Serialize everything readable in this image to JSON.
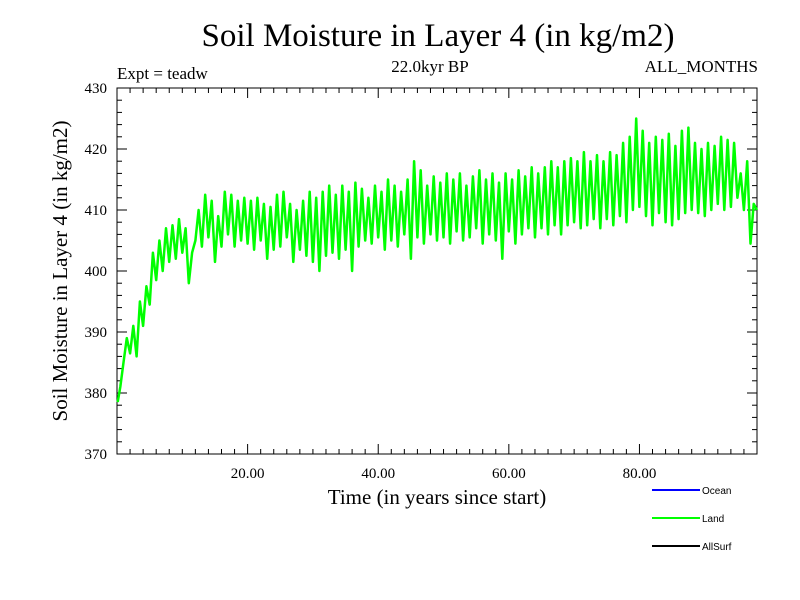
{
  "chart_data": {
    "type": "line",
    "title": "Soil Moisture in Layer 4 (in kg/m2)",
    "experiment": "Expt = teadw",
    "period": "22.0kyr BP",
    "months": "ALL_MONTHS",
    "xlabel": "Time (in years since start)",
    "ylabel": "Soil Moisture in Layer 4 (in kg/m2)",
    "xlim": [
      0,
      98
    ],
    "ylim": [
      370,
      430
    ],
    "xticks": [
      20,
      40,
      60,
      80
    ],
    "xtick_labels": [
      "20.00",
      "40.00",
      "60.00",
      "80.00"
    ],
    "yticks": [
      370,
      380,
      390,
      400,
      410,
      420,
      430
    ],
    "ytick_labels": [
      "370",
      "380",
      "390",
      "400",
      "410",
      "420",
      "430"
    ],
    "grid": false,
    "legend_position": "bottom-right",
    "series": [
      {
        "name": "Ocean",
        "color": "#0000ff",
        "points": []
      },
      {
        "name": "Land",
        "color": "#00ff00",
        "points": [
          [
            0.1,
            378.5
          ],
          [
            0.5,
            381
          ],
          [
            1,
            385
          ],
          [
            1.5,
            389
          ],
          [
            2,
            386.5
          ],
          [
            2.5,
            391
          ],
          [
            3,
            386
          ],
          [
            3.5,
            395
          ],
          [
            4,
            391
          ],
          [
            4.5,
            397.5
          ],
          [
            5,
            394.5
          ],
          [
            5.5,
            403
          ],
          [
            6,
            398.5
          ],
          [
            6.5,
            405
          ],
          [
            7,
            400
          ],
          [
            7.5,
            407
          ],
          [
            8,
            401.5
          ],
          [
            8.5,
            407.5
          ],
          [
            9,
            402
          ],
          [
            9.5,
            408.5
          ],
          [
            10,
            403
          ],
          [
            10.5,
            407
          ],
          [
            11,
            398
          ],
          [
            11.5,
            403
          ],
          [
            12,
            405
          ],
          [
            12.5,
            410
          ],
          [
            13,
            404
          ],
          [
            13.5,
            412.5
          ],
          [
            14,
            405.5
          ],
          [
            14.5,
            411.5
          ],
          [
            15,
            401.5
          ],
          [
            15.5,
            409
          ],
          [
            16,
            404
          ],
          [
            16.5,
            413
          ],
          [
            17,
            406
          ],
          [
            17.5,
            412.5
          ],
          [
            18,
            404
          ],
          [
            18.5,
            411.5
          ],
          [
            19,
            405
          ],
          [
            19.5,
            412
          ],
          [
            20,
            404.5
          ],
          [
            20.5,
            411.5
          ],
          [
            21,
            403.5
          ],
          [
            21.5,
            412
          ],
          [
            22,
            405
          ],
          [
            22.5,
            411
          ],
          [
            23,
            402
          ],
          [
            23.5,
            410.5
          ],
          [
            24,
            403.5
          ],
          [
            24.5,
            412.5
          ],
          [
            25,
            404
          ],
          [
            25.5,
            413
          ],
          [
            26,
            405.5
          ],
          [
            26.5,
            411
          ],
          [
            27,
            401.5
          ],
          [
            27.5,
            410
          ],
          [
            28,
            403.5
          ],
          [
            28.5,
            411.5
          ],
          [
            29,
            402.5
          ],
          [
            29.5,
            413
          ],
          [
            30,
            401.5
          ],
          [
            30.5,
            412
          ],
          [
            31,
            400
          ],
          [
            31.5,
            413
          ],
          [
            32,
            402.5
          ],
          [
            32.5,
            414
          ],
          [
            33,
            403
          ],
          [
            33.5,
            412.5
          ],
          [
            34,
            402
          ],
          [
            34.5,
            414
          ],
          [
            35,
            403.5
          ],
          [
            35.5,
            413
          ],
          [
            36,
            400
          ],
          [
            36.5,
            414.5
          ],
          [
            37,
            404
          ],
          [
            37.5,
            413.5
          ],
          [
            38,
            405
          ],
          [
            38.5,
            412
          ],
          [
            39,
            404.5
          ],
          [
            39.5,
            414
          ],
          [
            40,
            405.5
          ],
          [
            40.5,
            413
          ],
          [
            41,
            403.5
          ],
          [
            41.5,
            415
          ],
          [
            42,
            405
          ],
          [
            42.5,
            414
          ],
          [
            43,
            404
          ],
          [
            43.5,
            413
          ],
          [
            44,
            406
          ],
          [
            44.5,
            415
          ],
          [
            45,
            402
          ],
          [
            45.5,
            418
          ],
          [
            46,
            405.5
          ],
          [
            46.5,
            416.5
          ],
          [
            47,
            404.5
          ],
          [
            47.5,
            414
          ],
          [
            48,
            406
          ],
          [
            48.5,
            415.5
          ],
          [
            49,
            405
          ],
          [
            49.5,
            414.5
          ],
          [
            50,
            405.5
          ],
          [
            50.5,
            416
          ],
          [
            51,
            404.5
          ],
          [
            51.5,
            415
          ],
          [
            52,
            406.5
          ],
          [
            52.5,
            416
          ],
          [
            53,
            405
          ],
          [
            53.5,
            414
          ],
          [
            54,
            405.5
          ],
          [
            54.5,
            415.5
          ],
          [
            55,
            407
          ],
          [
            55.5,
            416.5
          ],
          [
            56,
            404.5
          ],
          [
            56.5,
            415
          ],
          [
            57,
            406
          ],
          [
            57.5,
            416
          ],
          [
            58,
            405
          ],
          [
            58.5,
            414.5
          ],
          [
            59,
            402
          ],
          [
            59.5,
            416
          ],
          [
            60,
            406.5
          ],
          [
            60.5,
            415
          ],
          [
            61,
            404.5
          ],
          [
            61.5,
            416.5
          ],
          [
            62,
            406
          ],
          [
            62.5,
            415.5
          ],
          [
            63,
            407
          ],
          [
            63.5,
            417
          ],
          [
            64,
            405.5
          ],
          [
            64.5,
            416
          ],
          [
            65,
            407
          ],
          [
            65.5,
            417
          ],
          [
            66,
            406
          ],
          [
            66.5,
            418
          ],
          [
            67,
            407.5
          ],
          [
            67.5,
            417
          ],
          [
            68,
            406
          ],
          [
            68.5,
            418
          ],
          [
            69,
            407.5
          ],
          [
            69.5,
            418.5
          ],
          [
            70,
            408
          ],
          [
            70.5,
            418
          ],
          [
            71,
            407
          ],
          [
            71.5,
            419.5
          ],
          [
            72,
            407.5
          ],
          [
            72.5,
            418
          ],
          [
            73,
            408.5
          ],
          [
            73.5,
            419
          ],
          [
            74,
            407
          ],
          [
            74.5,
            418
          ],
          [
            75,
            408.5
          ],
          [
            75.5,
            419.5
          ],
          [
            76,
            407.5
          ],
          [
            76.5,
            419
          ],
          [
            77,
            409
          ],
          [
            77.5,
            421
          ],
          [
            78,
            408
          ],
          [
            78.5,
            422
          ],
          [
            79,
            410
          ],
          [
            79.5,
            425
          ],
          [
            80,
            410.5
          ],
          [
            80.5,
            423
          ],
          [
            81,
            409
          ],
          [
            81.5,
            421
          ],
          [
            82,
            407.5
          ],
          [
            82.5,
            422
          ],
          [
            83,
            409.5
          ],
          [
            83.5,
            421.5
          ],
          [
            84,
            408
          ],
          [
            84.5,
            422.5
          ],
          [
            85,
            407.5
          ],
          [
            85.5,
            420.5
          ],
          [
            86,
            408.5
          ],
          [
            86.5,
            423
          ],
          [
            87,
            409.5
          ],
          [
            87.5,
            423.5
          ],
          [
            88,
            410
          ],
          [
            88.5,
            421
          ],
          [
            89,
            409.5
          ],
          [
            89.5,
            420
          ],
          [
            90,
            409
          ],
          [
            90.5,
            421
          ],
          [
            91,
            410
          ],
          [
            91.5,
            420.5
          ],
          [
            92,
            411
          ],
          [
            92.5,
            422
          ],
          [
            93,
            410
          ],
          [
            93.5,
            421.5
          ],
          [
            94,
            410.5
          ],
          [
            94.5,
            421
          ],
          [
            95,
            412
          ],
          [
            95.5,
            416
          ],
          [
            96,
            410
          ],
          [
            96.5,
            418
          ],
          [
            97,
            404.5
          ],
          [
            97.5,
            411
          ],
          [
            98,
            410
          ]
        ]
      },
      {
        "name": "AllSurf",
        "color": "#000000",
        "points": []
      }
    ]
  }
}
